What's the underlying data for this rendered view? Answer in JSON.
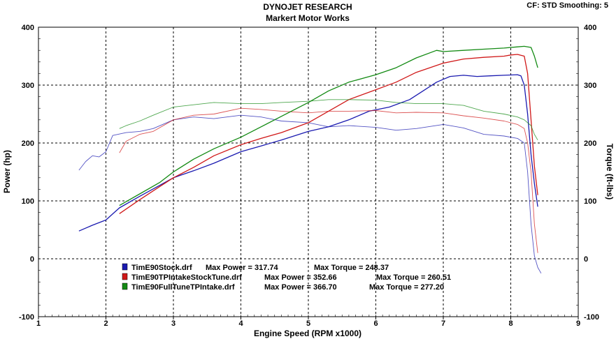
{
  "header": {
    "title": "DYNOJET RESEARCH",
    "subtitle": "Markert Motor Works",
    "corner": "CF: STD  Smoothing: 5"
  },
  "legend": [
    {
      "file": "TimE90Stock.drf",
      "max_power_label": "Max Power = 317.74",
      "max_torque_label": "Max Torque = 248.37",
      "color": "#1a1ab0"
    },
    {
      "file": "TimE90TPIntakeStockTune.drf",
      "max_power_label": "Max Power = 352.66",
      "max_torque_label": "Max Torque = 260.51",
      "color": "#d01818"
    },
    {
      "file": "TimE90FullTuneTPIntake.drf",
      "max_power_label": "Max Power = 366.70",
      "max_torque_label": "Max Torque = 277.20",
      "color": "#138a13"
    }
  ],
  "chart_data": {
    "type": "line",
    "xlabel": "Engine Speed (RPM x1000)",
    "ylabel": "Power (hp)",
    "y2label": "Torque (ft-lbs)",
    "xlim": [
      1,
      9
    ],
    "ylim": [
      -100,
      400
    ],
    "y2lim": [
      -100,
      400
    ],
    "x_ticks": [
      "1",
      "2",
      "3",
      "4",
      "5",
      "6",
      "7",
      "8",
      "9"
    ],
    "y_ticks": [
      "400",
      "300",
      "200",
      "100",
      "0",
      "-100"
    ],
    "y2_ticks": [
      "400",
      "300",
      "200",
      "100",
      "0",
      "-100"
    ],
    "grid": true,
    "legend_position": "bottom-left",
    "series": [
      {
        "name": "TimE90Stock.drf",
        "quantity": "power",
        "color": "#1a1ab0",
        "x": [
          1.6,
          1.8,
          2.0,
          2.2,
          2.5,
          2.8,
          3.0,
          3.3,
          3.6,
          4.0,
          4.3,
          4.6,
          5.0,
          5.3,
          5.6,
          5.9,
          6.2,
          6.5,
          6.7,
          6.9,
          7.1,
          7.3,
          7.5,
          7.7,
          7.9,
          8.1,
          8.15,
          8.2,
          8.25,
          8.3,
          8.35,
          8.4
        ],
        "y": [
          48,
          58,
          67,
          88,
          108,
          127,
          140,
          152,
          165,
          185,
          195,
          205,
          220,
          228,
          240,
          255,
          262,
          275,
          290,
          305,
          315,
          317,
          315,
          316,
          317,
          318,
          316,
          300,
          250,
          180,
          130,
          90
        ]
      },
      {
        "name": "TimE90Stock.drf",
        "quantity": "torque",
        "color": "#1a1ab0",
        "x": [
          1.6,
          1.7,
          1.8,
          1.9,
          2.0,
          2.1,
          2.3,
          2.5,
          2.7,
          3.0,
          3.3,
          3.6,
          4.0,
          4.3,
          4.6,
          5.0,
          5.3,
          5.6,
          6.0,
          6.3,
          6.6,
          7.0,
          7.3,
          7.6,
          7.9,
          8.1,
          8.2,
          8.25,
          8.3,
          8.35,
          8.4,
          8.45
        ],
        "y": [
          153,
          168,
          178,
          176,
          185,
          213,
          218,
          220,
          225,
          240,
          245,
          242,
          248,
          245,
          238,
          235,
          228,
          230,
          227,
          222,
          225,
          232,
          226,
          215,
          212,
          208,
          200,
          150,
          60,
          5,
          -15,
          -25
        ]
      },
      {
        "name": "TimE90TPIntakeStockTune.drf",
        "quantity": "power",
        "color": "#d01818",
        "x": [
          2.2,
          2.5,
          2.8,
          3.0,
          3.3,
          3.6,
          4.0,
          4.3,
          4.6,
          5.0,
          5.3,
          5.6,
          6.0,
          6.3,
          6.6,
          7.0,
          7.3,
          7.6,
          7.9,
          8.0,
          8.1,
          8.2,
          8.25,
          8.3,
          8.35,
          8.4
        ],
        "y": [
          78,
          102,
          125,
          140,
          158,
          178,
          197,
          208,
          218,
          235,
          255,
          275,
          292,
          305,
          322,
          338,
          345,
          348,
          350,
          352,
          353,
          350,
          320,
          240,
          160,
          110
        ]
      },
      {
        "name": "TimE90TPIntakeStockTune.drf",
        "quantity": "torque",
        "color": "#d01818",
        "x": [
          2.2,
          2.3,
          2.5,
          2.7,
          3.0,
          3.3,
          3.6,
          4.0,
          4.3,
          4.6,
          5.0,
          5.3,
          5.6,
          6.0,
          6.3,
          6.6,
          7.0,
          7.3,
          7.6,
          7.9,
          8.1,
          8.2,
          8.25,
          8.3,
          8.35,
          8.4
        ],
        "y": [
          183,
          203,
          215,
          220,
          240,
          248,
          250,
          260,
          258,
          255,
          252,
          255,
          255,
          256,
          252,
          253,
          252,
          247,
          243,
          238,
          232,
          225,
          200,
          150,
          60,
          10
        ]
      },
      {
        "name": "TimE90FullTuneTPIntake.drf",
        "quantity": "power",
        "color": "#138a13",
        "x": [
          2.2,
          2.5,
          2.8,
          3.0,
          3.3,
          3.6,
          4.0,
          4.3,
          4.6,
          5.0,
          5.3,
          5.6,
          6.0,
          6.3,
          6.6,
          6.9,
          7.0,
          7.3,
          7.6,
          7.9,
          8.1,
          8.2,
          8.3,
          8.35,
          8.4
        ],
        "y": [
          92,
          112,
          132,
          150,
          172,
          190,
          210,
          228,
          246,
          270,
          290,
          305,
          318,
          330,
          347,
          360,
          358,
          360,
          362,
          364,
          366,
          367,
          365,
          350,
          330
        ]
      },
      {
        "name": "TimE90FullTuneTPIntake.drf",
        "quantity": "torque",
        "color": "#138a13",
        "x": [
          2.2,
          2.3,
          2.5,
          2.7,
          3.0,
          3.3,
          3.6,
          4.0,
          4.3,
          4.6,
          5.0,
          5.3,
          5.6,
          6.0,
          6.3,
          6.6,
          7.0,
          7.3,
          7.6,
          7.9,
          8.1,
          8.2,
          8.3,
          8.35,
          8.4
        ],
        "y": [
          225,
          230,
          238,
          248,
          262,
          266,
          270,
          268,
          268,
          270,
          272,
          275,
          275,
          274,
          270,
          268,
          268,
          265,
          255,
          250,
          245,
          240,
          230,
          215,
          205
        ]
      }
    ]
  }
}
